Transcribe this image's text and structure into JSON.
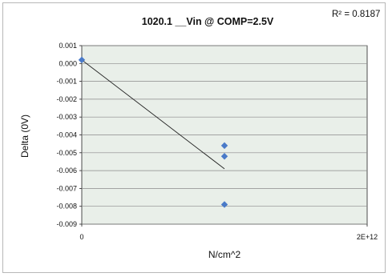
{
  "chart_data": {
    "type": "scatter",
    "title": "1020.1 __Vin @ COMP=2.5V",
    "annotation": "R² = 0.8187",
    "xlabel": "N/cm^2",
    "ylabel": "Delta (0V)",
    "xlim": [
      0,
      2000000000000
    ],
    "ylim": [
      -0.009,
      0.001
    ],
    "x_tick_labels": [
      "0",
      "2E+12"
    ],
    "y_tick_labels": [
      "0.001",
      "0.000",
      "-0.001",
      "-0.002",
      "-0.003",
      "-0.004",
      "-0.005",
      "-0.006",
      "-0.007",
      "-0.008",
      "-0.009"
    ],
    "grid": true,
    "plot_background": "#e9efe9",
    "marker_color": "#4a7ac8",
    "points": [
      {
        "x": 0,
        "y": 0.0002
      },
      {
        "x": 1000000000000,
        "y": -0.0046
      },
      {
        "x": 1000000000000,
        "y": -0.0052
      },
      {
        "x": 1000000000000,
        "y": -0.0079
      }
    ],
    "trendline": {
      "x": [
        0,
        1000000000000
      ],
      "y": [
        0.0002,
        -0.0059
      ]
    }
  }
}
